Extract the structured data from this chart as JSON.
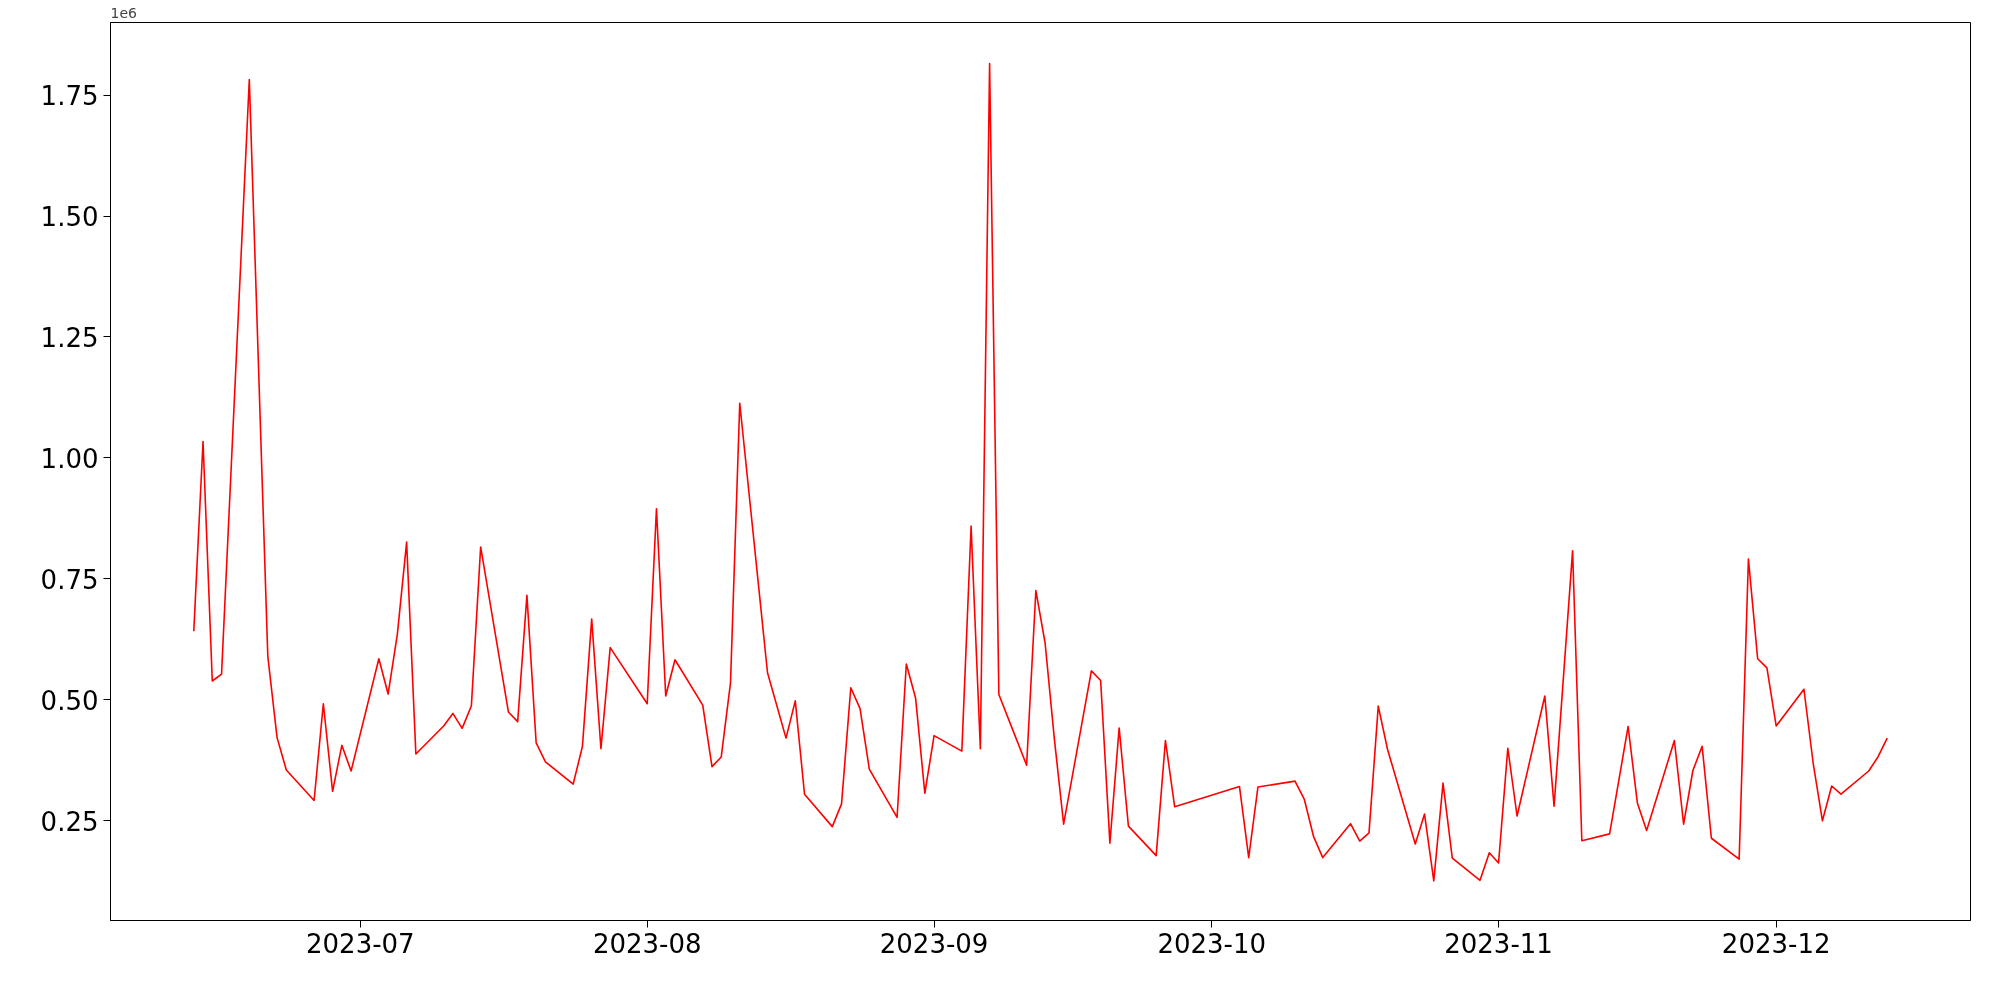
{
  "chart_data": {
    "type": "line",
    "annotations": [
      "1e6"
    ],
    "x": [
      "2023-06-13",
      "2023-06-14",
      "2023-06-15",
      "2023-06-16",
      "2023-06-19",
      "2023-06-21",
      "2023-06-22",
      "2023-06-23",
      "2023-06-26",
      "2023-06-27",
      "2023-06-28",
      "2023-06-29",
      "2023-06-30",
      "2023-07-03",
      "2023-07-04",
      "2023-07-05",
      "2023-07-06",
      "2023-07-07",
      "2023-07-10",
      "2023-07-11",
      "2023-07-12",
      "2023-07-13",
      "2023-07-14",
      "2023-07-17",
      "2023-07-18",
      "2023-07-19",
      "2023-07-20",
      "2023-07-21",
      "2023-07-24",
      "2023-07-25",
      "2023-07-26",
      "2023-07-27",
      "2023-07-28",
      "2023-08-01",
      "2023-08-02",
      "2023-08-03",
      "2023-08-04",
      "2023-08-07",
      "2023-08-08",
      "2023-08-09",
      "2023-08-10",
      "2023-08-11",
      "2023-08-14",
      "2023-08-16",
      "2023-08-17",
      "2023-08-18",
      "2023-08-21",
      "2023-08-22",
      "2023-08-23",
      "2023-08-24",
      "2023-08-25",
      "2023-08-28",
      "2023-08-29",
      "2023-08-30",
      "2023-08-31",
      "2023-09-01",
      "2023-09-04",
      "2023-09-05",
      "2023-09-06",
      "2023-09-07",
      "2023-09-08",
      "2023-09-11",
      "2023-09-12",
      "2023-09-13",
      "2023-09-14",
      "2023-09-15",
      "2023-09-18",
      "2023-09-19",
      "2023-09-20",
      "2023-09-21",
      "2023-09-22",
      "2023-09-25",
      "2023-09-26",
      "2023-09-27",
      "2023-10-04",
      "2023-10-05",
      "2023-10-06",
      "2023-10-10",
      "2023-10-11",
      "2023-10-12",
      "2023-10-13",
      "2023-10-16",
      "2023-10-17",
      "2023-10-18",
      "2023-10-19",
      "2023-10-20",
      "2023-10-23",
      "2023-10-24",
      "2023-10-25",
      "2023-10-26",
      "2023-10-27",
      "2023-10-30",
      "2023-10-31",
      "2023-11-01",
      "2023-11-02",
      "2023-11-03",
      "2023-11-06",
      "2023-11-07",
      "2023-11-09",
      "2023-11-10",
      "2023-11-13",
      "2023-11-15",
      "2023-11-16",
      "2023-11-17",
      "2023-11-20",
      "2023-11-21",
      "2023-11-22",
      "2023-11-23",
      "2023-11-24",
      "2023-11-27",
      "2023-11-28",
      "2023-11-29",
      "2023-11-30",
      "2023-12-01",
      "2023-12-04",
      "2023-12-05",
      "2023-12-06",
      "2023-12-07",
      "2023-12-08",
      "2023-12-11",
      "2023-12-12",
      "2023-12-13"
    ],
    "series": [
      {
        "color": "#ff0000",
        "values": [
          0.642,
          1.034,
          0.539,
          0.553,
          1.782,
          0.59,
          0.422,
          0.355,
          0.292,
          0.492,
          0.311,
          0.406,
          0.353,
          0.585,
          0.512,
          0.636,
          0.826,
          0.388,
          0.446,
          0.472,
          0.441,
          0.488,
          0.816,
          0.475,
          0.455,
          0.716,
          0.411,
          0.372,
          0.326,
          0.404,
          0.667,
          0.399,
          0.608,
          0.492,
          0.895,
          0.508,
          0.583,
          0.489,
          0.362,
          0.382,
          0.535,
          1.113,
          0.556,
          0.421,
          0.498,
          0.305,
          0.238,
          0.285,
          0.525,
          0.482,
          0.357,
          0.257,
          0.574,
          0.504,
          0.307,
          0.426,
          0.394,
          0.859,
          0.399,
          1.815,
          0.511,
          0.365,
          0.726,
          0.617,
          0.419,
          0.243,
          0.56,
          0.54,
          0.204,
          0.442,
          0.239,
          0.178,
          0.416,
          0.279,
          0.321,
          0.174,
          0.32,
          0.332,
          0.295,
          0.218,
          0.174,
          0.244,
          0.208,
          0.225,
          0.487,
          0.398,
          0.202,
          0.264,
          0.126,
          0.328,
          0.173,
          0.127,
          0.184,
          0.163,
          0.4,
          0.26,
          0.508,
          0.28,
          0.808,
          0.209,
          0.223,
          0.445,
          0.287,
          0.23,
          0.416,
          0.243,
          0.354,
          0.404,
          0.214,
          0.171,
          0.791,
          0.585,
          0.566,
          0.446,
          0.522,
          0.369,
          0.25,
          0.322,
          0.305,
          0.353,
          0.382,
          0.421
        ]
      }
    ],
    "xlim": [
      "2023-06-04",
      "2023-12-22"
    ],
    "xticks": [
      "2023-07",
      "2023-08",
      "2023-09",
      "2023-10",
      "2023-11",
      "2023-12"
    ],
    "ylim": [
      0.044,
      1.9
    ],
    "yticks": [
      {
        "value": 0.25,
        "label": "0.25"
      },
      {
        "value": 0.5,
        "label": "0.50"
      },
      {
        "value": 0.75,
        "label": "0.75"
      },
      {
        "value": 1.0,
        "label": "1.00"
      },
      {
        "value": 1.25,
        "label": "1.25"
      },
      {
        "value": 1.5,
        "label": "1.50"
      },
      {
        "value": 1.75,
        "label": "1.75"
      }
    ],
    "grid": false,
    "line_style": "solid"
  }
}
